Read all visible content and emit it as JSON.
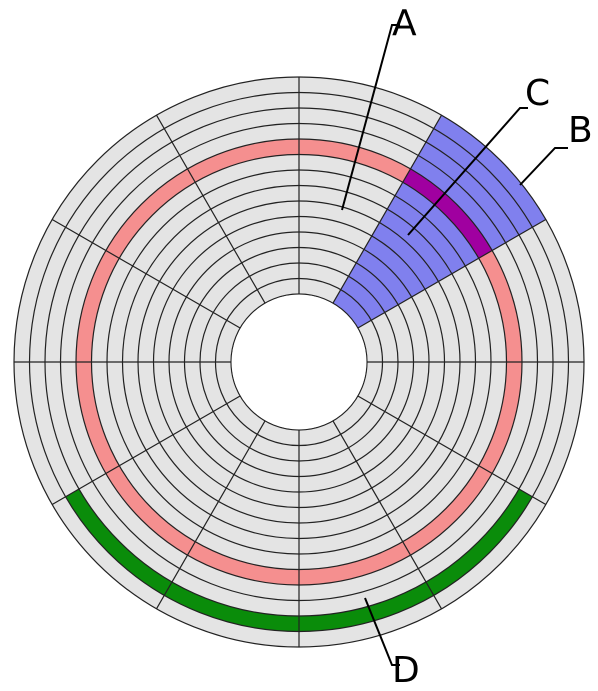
{
  "labels": {
    "a": "A",
    "b": "B",
    "c": "C",
    "d": "D"
  },
  "colors": {
    "platter": "#e4e4e4",
    "grid_lines": "#222222",
    "center_hole": "#ffffff",
    "track_highlight": "#f58f8f",
    "sector_highlight": "#8080ee",
    "cluster_highlight": "#a000a0",
    "arc_highlight": "#0a8c0a"
  }
}
